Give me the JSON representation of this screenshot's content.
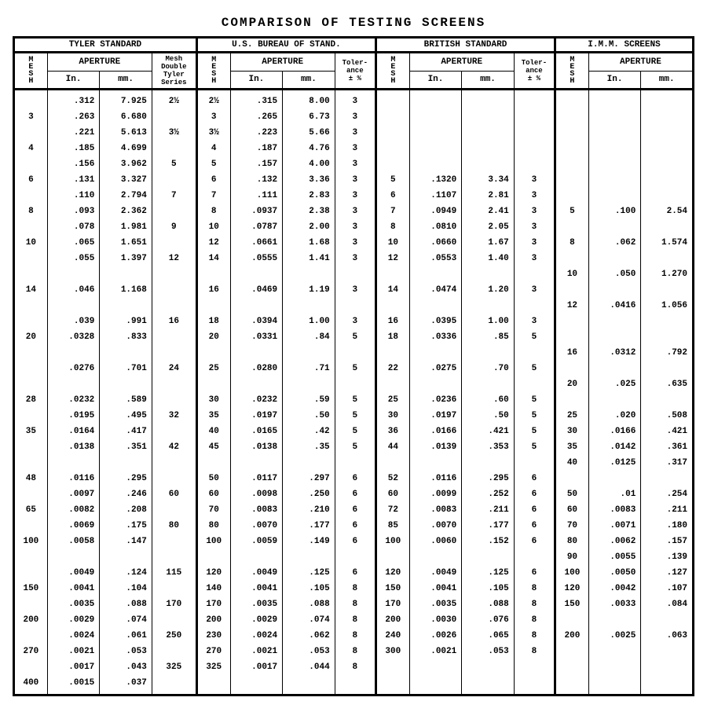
{
  "title": "COMPARISON OF TESTING SCREENS",
  "sections": {
    "tyler": "TYLER STANDARD",
    "usbs": "U.S. BUREAU OF STAND.",
    "british": "BRITISH STANDARD",
    "imm": "I.M.M. SCREENS"
  },
  "headers": {
    "mesh": "M\nE\nS\nH",
    "aperture": "APERTURE",
    "in": "In.",
    "mm": "mm.",
    "meshDouble": "Mesh Double Tyler Series",
    "tolerance": "Toler-\nance\n± %"
  },
  "rows": [
    {
      "ty_m": "",
      "ty_i": ".312",
      "ty_mm": "7.925",
      "ty_d": "2½",
      "us_m": "2½",
      "us_i": ".315",
      "us_mm": "8.00",
      "us_t": "3",
      "br_m": "",
      "br_i": "",
      "br_mm": "",
      "br_t": "",
      "im_m": "",
      "im_i": "",
      "im_mm": ""
    },
    {
      "ty_m": "3",
      "ty_i": ".263",
      "ty_mm": "6.680",
      "ty_d": "",
      "us_m": "3",
      "us_i": ".265",
      "us_mm": "6.73",
      "us_t": "3",
      "br_m": "",
      "br_i": "",
      "br_mm": "",
      "br_t": "",
      "im_m": "",
      "im_i": "",
      "im_mm": ""
    },
    {
      "ty_m": "",
      "ty_i": ".221",
      "ty_mm": "5.613",
      "ty_d": "3½",
      "us_m": "3½",
      "us_i": ".223",
      "us_mm": "5.66",
      "us_t": "3",
      "br_m": "",
      "br_i": "",
      "br_mm": "",
      "br_t": "",
      "im_m": "",
      "im_i": "",
      "im_mm": ""
    },
    {
      "ty_m": "4",
      "ty_i": ".185",
      "ty_mm": "4.699",
      "ty_d": "",
      "us_m": "4",
      "us_i": ".187",
      "us_mm": "4.76",
      "us_t": "3",
      "br_m": "",
      "br_i": "",
      "br_mm": "",
      "br_t": "",
      "im_m": "",
      "im_i": "",
      "im_mm": ""
    },
    {
      "ty_m": "",
      "ty_i": ".156",
      "ty_mm": "3.962",
      "ty_d": "5",
      "us_m": "5",
      "us_i": ".157",
      "us_mm": "4.00",
      "us_t": "3",
      "br_m": "",
      "br_i": "",
      "br_mm": "",
      "br_t": "",
      "im_m": "",
      "im_i": "",
      "im_mm": ""
    },
    {
      "ty_m": "6",
      "ty_i": ".131",
      "ty_mm": "3.327",
      "ty_d": "",
      "us_m": "6",
      "us_i": ".132",
      "us_mm": "3.36",
      "us_t": "3",
      "br_m": "5",
      "br_i": ".1320",
      "br_mm": "3.34",
      "br_t": "3",
      "im_m": "",
      "im_i": "",
      "im_mm": ""
    },
    {
      "ty_m": "",
      "ty_i": ".110",
      "ty_mm": "2.794",
      "ty_d": "7",
      "us_m": "7",
      "us_i": ".111",
      "us_mm": "2.83",
      "us_t": "3",
      "br_m": "6",
      "br_i": ".1107",
      "br_mm": "2.81",
      "br_t": "3",
      "im_m": "",
      "im_i": "",
      "im_mm": ""
    },
    {
      "ty_m": "8",
      "ty_i": ".093",
      "ty_mm": "2.362",
      "ty_d": "",
      "us_m": "8",
      "us_i": ".0937",
      "us_mm": "2.38",
      "us_t": "3",
      "br_m": "7",
      "br_i": ".0949",
      "br_mm": "2.41",
      "br_t": "3",
      "im_m": "5",
      "im_i": ".100",
      "im_mm": "2.54"
    },
    {
      "ty_m": "",
      "ty_i": ".078",
      "ty_mm": "1.981",
      "ty_d": "9",
      "us_m": "10",
      "us_i": ".0787",
      "us_mm": "2.00",
      "us_t": "3",
      "br_m": "8",
      "br_i": ".0810",
      "br_mm": "2.05",
      "br_t": "3",
      "im_m": "",
      "im_i": "",
      "im_mm": ""
    },
    {
      "ty_m": "10",
      "ty_i": ".065",
      "ty_mm": "1.651",
      "ty_d": "",
      "us_m": "12",
      "us_i": ".0661",
      "us_mm": "1.68",
      "us_t": "3",
      "br_m": "10",
      "br_i": ".0660",
      "br_mm": "1.67",
      "br_t": "3",
      "im_m": "8",
      "im_i": ".062",
      "im_mm": "1.574"
    },
    {
      "ty_m": "",
      "ty_i": ".055",
      "ty_mm": "1.397",
      "ty_d": "12",
      "us_m": "14",
      "us_i": ".0555",
      "us_mm": "1.41",
      "us_t": "3",
      "br_m": "12",
      "br_i": ".0553",
      "br_mm": "1.40",
      "br_t": "3",
      "im_m": "",
      "im_i": "",
      "im_mm": ""
    },
    {
      "ty_m": "",
      "ty_i": "",
      "ty_mm": "",
      "ty_d": "",
      "us_m": "",
      "us_i": "",
      "us_mm": "",
      "us_t": "",
      "br_m": "",
      "br_i": "",
      "br_mm": "",
      "br_t": "",
      "im_m": "10",
      "im_i": ".050",
      "im_mm": "1.270"
    },
    {
      "ty_m": "14",
      "ty_i": ".046",
      "ty_mm": "1.168",
      "ty_d": "",
      "us_m": "16",
      "us_i": ".0469",
      "us_mm": "1.19",
      "us_t": "3",
      "br_m": "14",
      "br_i": ".0474",
      "br_mm": "1.20",
      "br_t": "3",
      "im_m": "",
      "im_i": "",
      "im_mm": ""
    },
    {
      "ty_m": "",
      "ty_i": "",
      "ty_mm": "",
      "ty_d": "",
      "us_m": "",
      "us_i": "",
      "us_mm": "",
      "us_t": "",
      "br_m": "",
      "br_i": "",
      "br_mm": "",
      "br_t": "",
      "im_m": "12",
      "im_i": ".0416",
      "im_mm": "1.056"
    },
    {
      "ty_m": "",
      "ty_i": ".039",
      "ty_mm": ".991",
      "ty_d": "16",
      "us_m": "18",
      "us_i": ".0394",
      "us_mm": "1.00",
      "us_t": "3",
      "br_m": "16",
      "br_i": ".0395",
      "br_mm": "1.00",
      "br_t": "3",
      "im_m": "",
      "im_i": "",
      "im_mm": ""
    },
    {
      "ty_m": "20",
      "ty_i": ".0328",
      "ty_mm": ".833",
      "ty_d": "",
      "us_m": "20",
      "us_i": ".0331",
      "us_mm": ".84",
      "us_t": "5",
      "br_m": "18",
      "br_i": ".0336",
      "br_mm": ".85",
      "br_t": "5",
      "im_m": "",
      "im_i": "",
      "im_mm": ""
    },
    {
      "ty_m": "",
      "ty_i": "",
      "ty_mm": "",
      "ty_d": "",
      "us_m": "",
      "us_i": "",
      "us_mm": "",
      "us_t": "",
      "br_m": "",
      "br_i": "",
      "br_mm": "",
      "br_t": "",
      "im_m": "16",
      "im_i": ".0312",
      "im_mm": ".792"
    },
    {
      "ty_m": "",
      "ty_i": ".0276",
      "ty_mm": ".701",
      "ty_d": "24",
      "us_m": "25",
      "us_i": ".0280",
      "us_mm": ".71",
      "us_t": "5",
      "br_m": "22",
      "br_i": ".0275",
      "br_mm": ".70",
      "br_t": "5",
      "im_m": "",
      "im_i": "",
      "im_mm": ""
    },
    {
      "ty_m": "",
      "ty_i": "",
      "ty_mm": "",
      "ty_d": "",
      "us_m": "",
      "us_i": "",
      "us_mm": "",
      "us_t": "",
      "br_m": "",
      "br_i": "",
      "br_mm": "",
      "br_t": "",
      "im_m": "20",
      "im_i": ".025",
      "im_mm": ".635"
    },
    {
      "ty_m": "28",
      "ty_i": ".0232",
      "ty_mm": ".589",
      "ty_d": "",
      "us_m": "30",
      "us_i": ".0232",
      "us_mm": ".59",
      "us_t": "5",
      "br_m": "25",
      "br_i": ".0236",
      "br_mm": ".60",
      "br_t": "5",
      "im_m": "",
      "im_i": "",
      "im_mm": ""
    },
    {
      "ty_m": "",
      "ty_i": ".0195",
      "ty_mm": ".495",
      "ty_d": "32",
      "us_m": "35",
      "us_i": ".0197",
      "us_mm": ".50",
      "us_t": "5",
      "br_m": "30",
      "br_i": ".0197",
      "br_mm": ".50",
      "br_t": "5",
      "im_m": "25",
      "im_i": ".020",
      "im_mm": ".508"
    },
    {
      "ty_m": "35",
      "ty_i": ".0164",
      "ty_mm": ".417",
      "ty_d": "",
      "us_m": "40",
      "us_i": ".0165",
      "us_mm": ".42",
      "us_t": "5",
      "br_m": "36",
      "br_i": ".0166",
      "br_mm": ".421",
      "br_t": "5",
      "im_m": "30",
      "im_i": ".0166",
      "im_mm": ".421"
    },
    {
      "ty_m": "",
      "ty_i": ".0138",
      "ty_mm": ".351",
      "ty_d": "42",
      "us_m": "45",
      "us_i": ".0138",
      "us_mm": ".35",
      "us_t": "5",
      "br_m": "44",
      "br_i": ".0139",
      "br_mm": ".353",
      "br_t": "5",
      "im_m": "35",
      "im_i": ".0142",
      "im_mm": ".361"
    },
    {
      "ty_m": "",
      "ty_i": "",
      "ty_mm": "",
      "ty_d": "",
      "us_m": "",
      "us_i": "",
      "us_mm": "",
      "us_t": "",
      "br_m": "",
      "br_i": "",
      "br_mm": "",
      "br_t": "",
      "im_m": "40",
      "im_i": ".0125",
      "im_mm": ".317"
    },
    {
      "ty_m": "48",
      "ty_i": ".0116",
      "ty_mm": ".295",
      "ty_d": "",
      "us_m": "50",
      "us_i": ".0117",
      "us_mm": ".297",
      "us_t": "6",
      "br_m": "52",
      "br_i": ".0116",
      "br_mm": ".295",
      "br_t": "6",
      "im_m": "",
      "im_i": "",
      "im_mm": ""
    },
    {
      "ty_m": "",
      "ty_i": ".0097",
      "ty_mm": ".246",
      "ty_d": "60",
      "us_m": "60",
      "us_i": ".0098",
      "us_mm": ".250",
      "us_t": "6",
      "br_m": "60",
      "br_i": ".0099",
      "br_mm": ".252",
      "br_t": "6",
      "im_m": "50",
      "im_i": ".01",
      "im_mm": ".254"
    },
    {
      "ty_m": "65",
      "ty_i": ".0082",
      "ty_mm": ".208",
      "ty_d": "",
      "us_m": "70",
      "us_i": ".0083",
      "us_mm": ".210",
      "us_t": "6",
      "br_m": "72",
      "br_i": ".0083",
      "br_mm": ".211",
      "br_t": "6",
      "im_m": "60",
      "im_i": ".0083",
      "im_mm": ".211"
    },
    {
      "ty_m": "",
      "ty_i": ".0069",
      "ty_mm": ".175",
      "ty_d": "80",
      "us_m": "80",
      "us_i": ".0070",
      "us_mm": ".177",
      "us_t": "6",
      "br_m": "85",
      "br_i": ".0070",
      "br_mm": ".177",
      "br_t": "6",
      "im_m": "70",
      "im_i": ".0071",
      "im_mm": ".180"
    },
    {
      "ty_m": "100",
      "ty_i": ".0058",
      "ty_mm": ".147",
      "ty_d": "",
      "us_m": "100",
      "us_i": ".0059",
      "us_mm": ".149",
      "us_t": "6",
      "br_m": "100",
      "br_i": ".0060",
      "br_mm": ".152",
      "br_t": "6",
      "im_m": "80",
      "im_i": ".0062",
      "im_mm": ".157"
    },
    {
      "ty_m": "",
      "ty_i": "",
      "ty_mm": "",
      "ty_d": "",
      "us_m": "",
      "us_i": "",
      "us_mm": "",
      "us_t": "",
      "br_m": "",
      "br_i": "",
      "br_mm": "",
      "br_t": "",
      "im_m": "90",
      "im_i": ".0055",
      "im_mm": ".139"
    },
    {
      "ty_m": "",
      "ty_i": ".0049",
      "ty_mm": ".124",
      "ty_d": "115",
      "us_m": "120",
      "us_i": ".0049",
      "us_mm": ".125",
      "us_t": "6",
      "br_m": "120",
      "br_i": ".0049",
      "br_mm": ".125",
      "br_t": "6",
      "im_m": "100",
      "im_i": ".0050",
      "im_mm": ".127"
    },
    {
      "ty_m": "150",
      "ty_i": ".0041",
      "ty_mm": ".104",
      "ty_d": "",
      "us_m": "140",
      "us_i": ".0041",
      "us_mm": ".105",
      "us_t": "8",
      "br_m": "150",
      "br_i": ".0041",
      "br_mm": ".105",
      "br_t": "8",
      "im_m": "120",
      "im_i": ".0042",
      "im_mm": ".107"
    },
    {
      "ty_m": "",
      "ty_i": ".0035",
      "ty_mm": ".088",
      "ty_d": "170",
      "us_m": "170",
      "us_i": ".0035",
      "us_mm": ".088",
      "us_t": "8",
      "br_m": "170",
      "br_i": ".0035",
      "br_mm": ".088",
      "br_t": "8",
      "im_m": "150",
      "im_i": ".0033",
      "im_mm": ".084"
    },
    {
      "ty_m": "200",
      "ty_i": ".0029",
      "ty_mm": ".074",
      "ty_d": "",
      "us_m": "200",
      "us_i": ".0029",
      "us_mm": ".074",
      "us_t": "8",
      "br_m": "200",
      "br_i": ".0030",
      "br_mm": ".076",
      "br_t": "8",
      "im_m": "",
      "im_i": "",
      "im_mm": ""
    },
    {
      "ty_m": "",
      "ty_i": ".0024",
      "ty_mm": ".061",
      "ty_d": "250",
      "us_m": "230",
      "us_i": ".0024",
      "us_mm": ".062",
      "us_t": "8",
      "br_m": "240",
      "br_i": ".0026",
      "br_mm": ".065",
      "br_t": "8",
      "im_m": "200",
      "im_i": ".0025",
      "im_mm": ".063"
    },
    {
      "ty_m": "270",
      "ty_i": ".0021",
      "ty_mm": ".053",
      "ty_d": "",
      "us_m": "270",
      "us_i": ".0021",
      "us_mm": ".053",
      "us_t": "8",
      "br_m": "300",
      "br_i": ".0021",
      "br_mm": ".053",
      "br_t": "8",
      "im_m": "",
      "im_i": "",
      "im_mm": ""
    },
    {
      "ty_m": "",
      "ty_i": ".0017",
      "ty_mm": ".043",
      "ty_d": "325",
      "us_m": "325",
      "us_i": ".0017",
      "us_mm": ".044",
      "us_t": "8",
      "br_m": "",
      "br_i": "",
      "br_mm": "",
      "br_t": "",
      "im_m": "",
      "im_i": "",
      "im_mm": ""
    },
    {
      "ty_m": "400",
      "ty_i": ".0015",
      "ty_mm": ".037",
      "ty_d": "",
      "us_m": "",
      "us_i": "",
      "us_mm": "",
      "us_t": "",
      "br_m": "",
      "br_i": "",
      "br_mm": "",
      "br_t": "",
      "im_m": "",
      "im_i": "",
      "im_mm": ""
    }
  ]
}
